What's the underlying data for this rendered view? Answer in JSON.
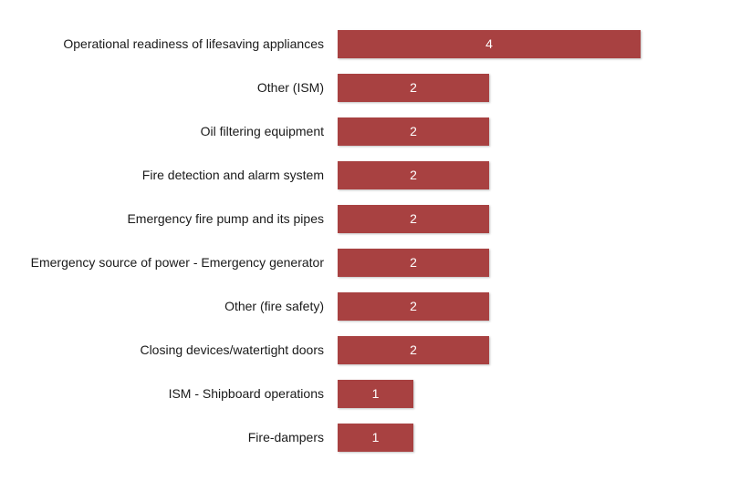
{
  "chart_data": {
    "type": "bar",
    "orientation": "horizontal",
    "categories": [
      "Operational readiness of lifesaving appliances",
      "Other (ISM)",
      "Oil filtering equipment",
      "Fire detection and alarm system",
      "Emergency fire pump and its pipes",
      "Emergency source of power - Emergency generator",
      "Other (fire safety)",
      "Closing devices/watertight doors",
      "ISM - Shipboard operations",
      "Fire-dampers"
    ],
    "values": [
      4,
      2,
      2,
      2,
      2,
      2,
      2,
      2,
      1,
      1
    ],
    "data_labels": [
      "4",
      "2",
      "2",
      "2",
      "2",
      "2",
      "2",
      "2",
      "1",
      "1"
    ],
    "title": "",
    "xlabel": "",
    "ylabel": "",
    "xlim": [
      0,
      4
    ],
    "grid": false,
    "legend": "none",
    "bar_color": "#a84141"
  }
}
